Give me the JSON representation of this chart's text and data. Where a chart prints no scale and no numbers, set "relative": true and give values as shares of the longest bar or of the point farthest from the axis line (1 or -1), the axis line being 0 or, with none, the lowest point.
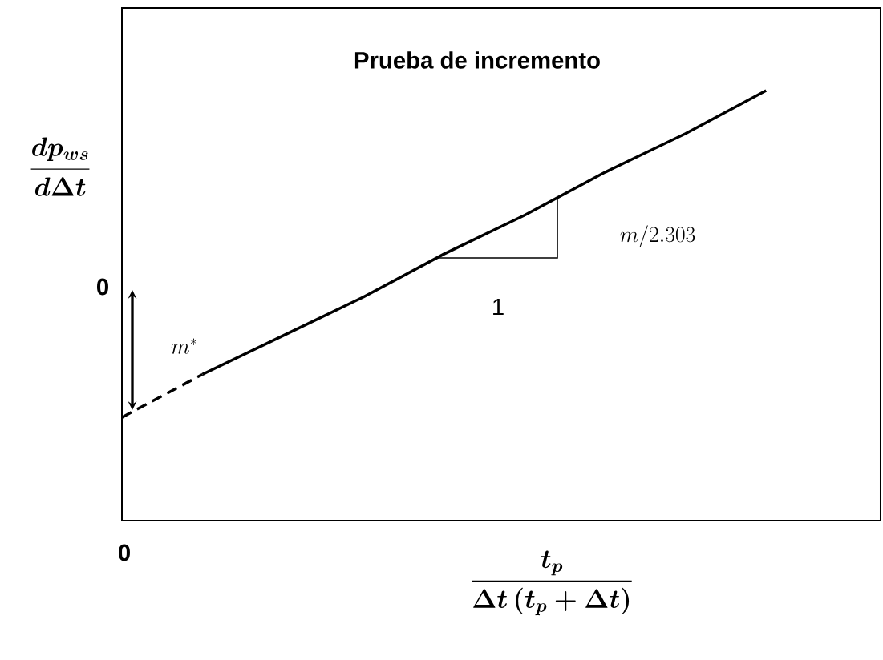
{
  "chart_data": {
    "type": "line",
    "relative": true,
    "title": "Prueba de incremento",
    "xlabel": "\\bm{\\frac{t_p}{\\Delta t\\left(t_p+\\Delta t\\right)}}",
    "ylabel": "\\bm{\\frac{dp_{ws}}{d\\Delta t}}",
    "categories": [
      null,
      null,
      null,
      null,
      null,
      null,
      null,
      null,
      null
    ],
    "series": [
      {
        "color": "#000000",
        "line_style": "dashed",
        "values": [
          0.24,
          0.34,
          null,
          null,
          null,
          null,
          null,
          null,
          null
        ]
      },
      {
        "color": "#000000",
        "line_style": "solid",
        "values": [
          null,
          0.34,
          0.43,
          0.52,
          0.62,
          0.71,
          0.81,
          0.9,
          1
        ]
      }
    ],
    "annotations": [
      "0",
      "0",
      "m^*",
      "1",
      "m/2.303"
    ]
  }
}
